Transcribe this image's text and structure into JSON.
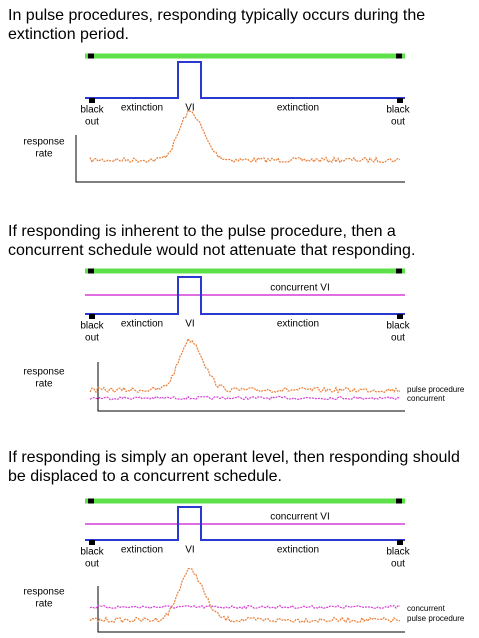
{
  "panels": [
    {
      "caption": [
        "In pulse procedures, responding typically occurs during the",
        "extinction period."
      ],
      "left_blackout": [
        "black",
        "out"
      ],
      "left_extinction": "extinction",
      "vi": "VI",
      "right_extinction": "extinction",
      "right_blackout": [
        "black",
        "out"
      ],
      "y_label": [
        "response",
        "rate"
      ]
    },
    {
      "caption": [
        "If responding is inherent to the pulse procedure, then a",
        "concurrent schedule would not attenuate that responding."
      ],
      "concurrent_label": "concurrent VI",
      "left_blackout": [
        "black",
        "out"
      ],
      "left_extinction": "extinction",
      "vi": "VI",
      "right_extinction": "extinction",
      "right_blackout": [
        "black",
        "out"
      ],
      "y_label": [
        "response",
        "rate"
      ],
      "legend": {
        "pulse": "pulse procedure",
        "concurrent": "concurrent"
      }
    },
    {
      "caption": [
        "If responding is simply an operant level, then  responding should",
        "be displaced to a concurrent schedule."
      ],
      "concurrent_label": "concurrent VI",
      "left_blackout": [
        "black",
        "out"
      ],
      "left_extinction": "extinction",
      "vi": "VI",
      "right_extinction": "extinction",
      "right_blackout": [
        "black",
        "out"
      ],
      "y_label": [
        "response",
        "rate"
      ],
      "legend": {
        "pulse": "pulse procedure",
        "concurrent": "concurrent"
      }
    }
  ]
}
